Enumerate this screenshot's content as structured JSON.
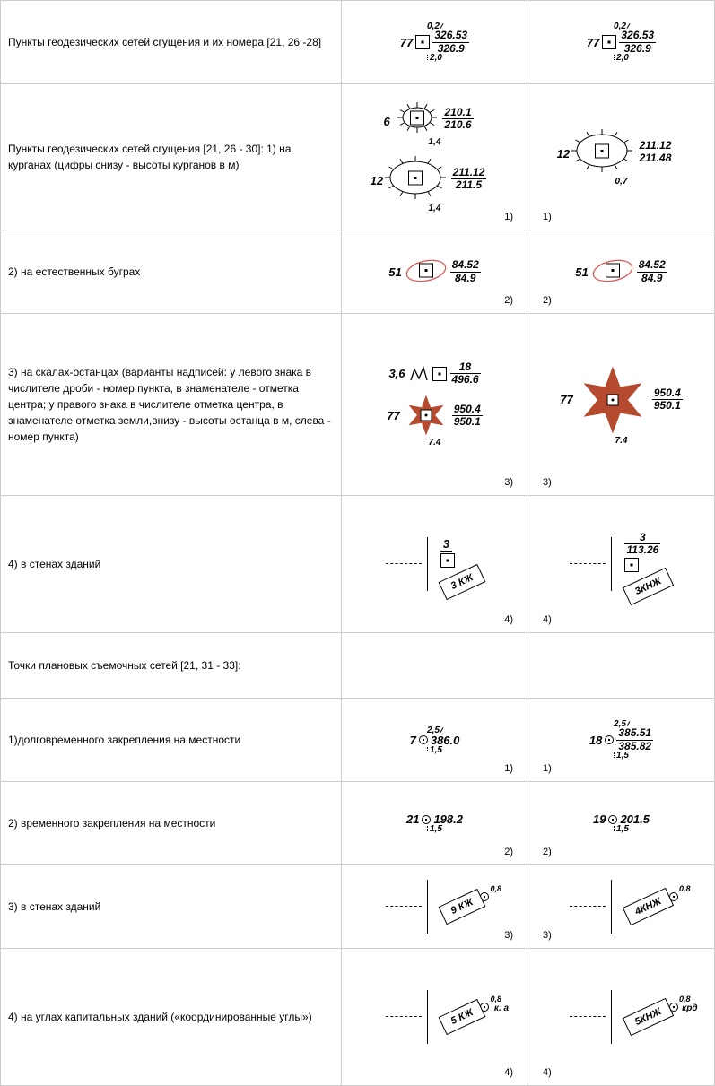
{
  "rows": [
    {
      "desc": "Пункты геодезических сетей сгущения и их номера [21, 26 -28]",
      "s1": {
        "type": "sq",
        "left": "77",
        "frac": [
          "326.53",
          "326.9"
        ],
        "top": "0,2",
        "bottom": "2,0"
      },
      "s2": {
        "type": "sq",
        "left": "77",
        "frac": [
          "326.53",
          "326.9"
        ],
        "top": "0,2",
        "bottom": "2,0"
      }
    },
    {
      "desc": "Пункты геодезических сетей сгущения [21, 26 - 30]:\n1) на курганах (цифры снизу - высоты курганов в м)",
      "idx": "1)",
      "s1": [
        {
          "type": "kurgan-small",
          "left": "6",
          "frac": [
            "210.1",
            "210.6"
          ],
          "bottom": "1,4"
        },
        {
          "type": "kurgan-large",
          "left": "12",
          "frac": [
            "211.12",
            "211.5"
          ],
          "bottom": "1,4"
        }
      ],
      "s2": {
        "type": "kurgan-large",
        "left": "12",
        "frac": [
          "211.12",
          "211.48"
        ],
        "bottom": "0,7"
      }
    },
    {
      "desc": "2) на естественных буграх",
      "idx": "2)",
      "s1": {
        "type": "bugor",
        "left": "51",
        "frac": [
          "84.52",
          "84.9"
        ]
      },
      "s2": {
        "type": "bugor",
        "left": "51",
        "frac": [
          "84.52",
          "84.9"
        ]
      }
    },
    {
      "desc": "3) на скалах-останцах (варианты надписей: у левого знака в числителе дроби - номер пункта, в знаменателе - отметка центра; у правого знака в числителе отметка центра, в знаменателе отметка земли,внизу - высоты останца в м, слева - номер пункта)",
      "idx": "3)",
      "s1": [
        {
          "type": "rock-small",
          "left": "3,6",
          "frac": [
            "18",
            "496.6"
          ]
        },
        {
          "type": "rock-star",
          "left": "77",
          "frac": [
            "950.4",
            "950.1"
          ],
          "bottom": "7.4"
        }
      ],
      "s2": {
        "type": "rock-star-big",
        "left": "77",
        "frac": [
          "950.4",
          "950.1"
        ],
        "bottom": "7.4"
      }
    },
    {
      "desc": "4) в стенах зданий",
      "idx": "4)",
      "s1": {
        "type": "wall",
        "label": "3 КЖ",
        "topfrac": "3"
      },
      "s2": {
        "type": "wall",
        "label": "3КНЖ",
        "topfrac": [
          "3",
          "113.26"
        ]
      }
    },
    {
      "desc": "Точки плановых съемочных сетей [21, 31 - 33]:",
      "s1": null,
      "s2": null
    },
    {
      "desc": "1)долговременного закрепления на местности",
      "idx": "1)",
      "s1": {
        "type": "dot",
        "left": "7",
        "right": "386.0",
        "top": "2,5",
        "bottom": "1,5"
      },
      "s2": {
        "type": "dot",
        "left": "18",
        "frac": [
          "385.51",
          "385.82"
        ],
        "top": "2,5",
        "bottom": "1,5"
      }
    },
    {
      "desc": "2) временного закрепления на местности",
      "idx": "2)",
      "s1": {
        "type": "dot-open",
        "left": "21",
        "right": "198.2",
        "bottom": "1,5"
      },
      "s2": {
        "type": "dot-open",
        "left": "19",
        "right": "201.5",
        "bottom": "1,5"
      }
    },
    {
      "desc": "3) в стенах зданий",
      "idx": "3)",
      "s1": {
        "type": "wall-dot",
        "label": "9 КЖ",
        "corner": "0,8"
      },
      "s2": {
        "type": "wall-dot",
        "label": "4КНЖ",
        "corner": "0,8"
      }
    },
    {
      "desc": "4) на углах капитальных зданий («координированные углы»)",
      "idx": "4)",
      "s1": {
        "type": "wall-corner",
        "label": "5 КЖ",
        "corner": "0,8",
        "txt": "к. а"
      },
      "s2": {
        "type": "wall-corner",
        "label": "5КНЖ",
        "corner": "0,8",
        "txt": "крд"
      }
    }
  ]
}
